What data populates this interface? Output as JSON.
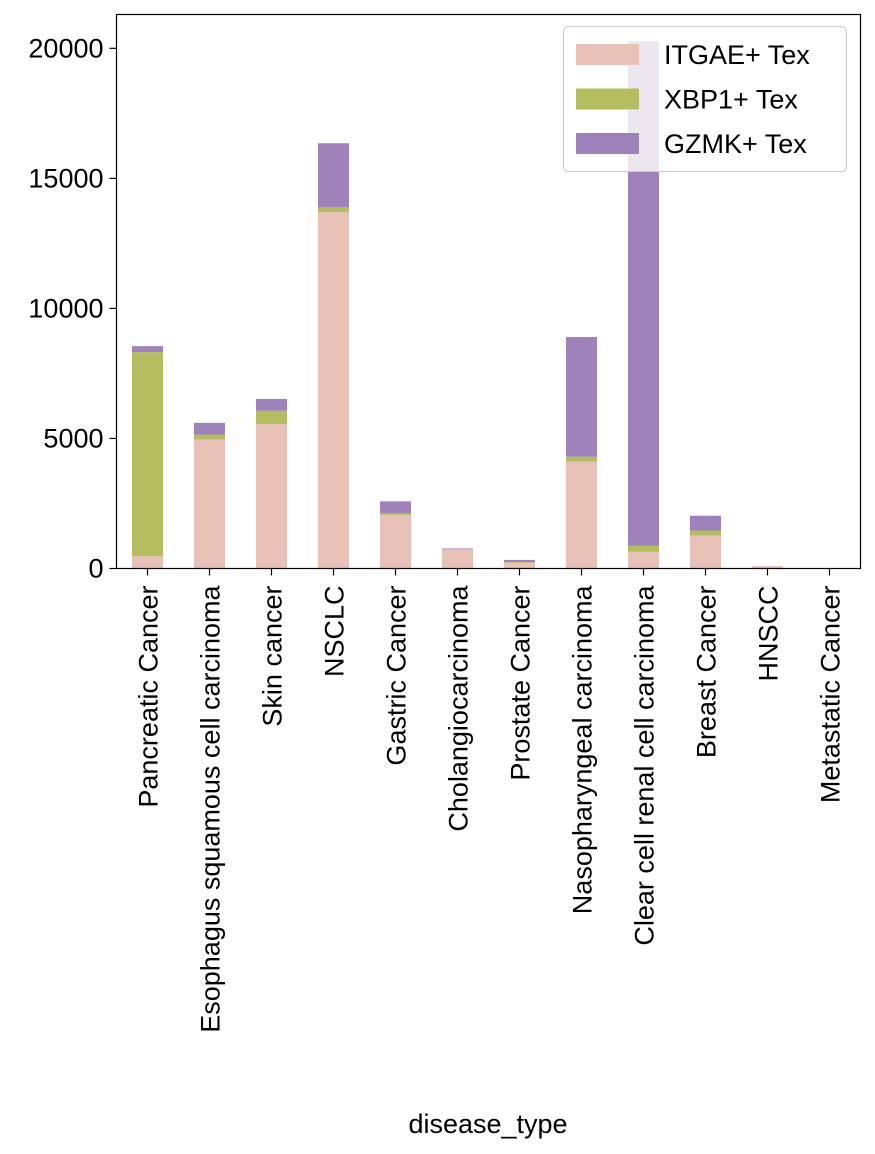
{
  "chart_data": {
    "type": "bar",
    "stacked": true,
    "title": "",
    "xlabel": "disease_type",
    "ylabel": "",
    "ylim": [
      0,
      21300
    ],
    "yticks": [
      0,
      5000,
      10000,
      15000,
      20000
    ],
    "grid": false,
    "legend_position": "top-right",
    "categories": [
      "Pancreatic Cancer",
      "Esophagus squamous cell carcinoma",
      "Skin cancer",
      "NSCLC",
      "Gastric Cancer",
      "Cholangiocarcinoma",
      "Prostate Cancer",
      "Nasopharyngeal carcinoma",
      "Clear cell renal cell carcinoma",
      "Breast Cancer",
      "HNSCC",
      "Metastatic Cancer"
    ],
    "series": [
      {
        "name": "ITGAE+ Tex",
        "color": "#e8c1b9",
        "values": [
          470,
          4950,
          5550,
          13700,
          2050,
          720,
          230,
          4100,
          640,
          1270,
          90,
          0
        ]
      },
      {
        "name": "XBP1+ Tex",
        "color": "#b5bd61",
        "values": [
          7850,
          200,
          520,
          200,
          80,
          20,
          20,
          200,
          230,
          190,
          0,
          0
        ]
      },
      {
        "name": "GZMK+ Tex",
        "color": "#9f82b9",
        "values": [
          230,
          450,
          450,
          2450,
          450,
          30,
          80,
          4600,
          19400,
          570,
          0,
          0
        ]
      }
    ]
  }
}
